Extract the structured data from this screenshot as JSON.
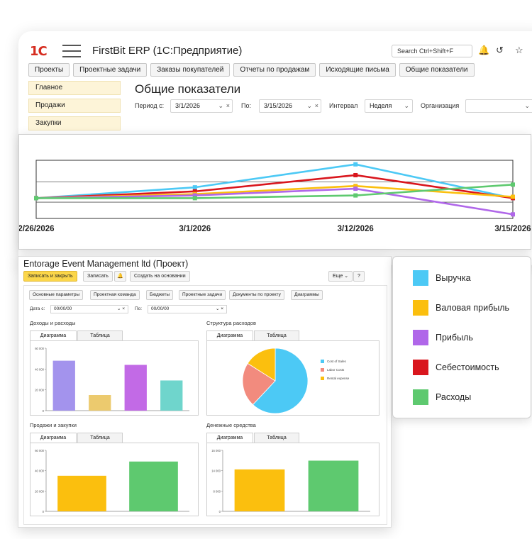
{
  "app": {
    "logo": "1С",
    "title": "FirstBit ERP (1С:Предприятие)",
    "search_placeholder": "Search Ctrl+Shift+F"
  },
  "top_tabs": [
    "Проекты",
    "Проектные задачи",
    "Заказы покупателей",
    "Отчеты по продажам",
    "Исходящие письма",
    "Общие показатели"
  ],
  "sidebar": [
    "Главное",
    "Продажи",
    "Закупки"
  ],
  "page": {
    "title": "Общие показатели",
    "filters": {
      "period_from_label": "Период с:",
      "period_from": "3/1/2026",
      "period_to_label": "По:",
      "period_to": "3/15/2026",
      "interval_label": "Интервал",
      "interval": "Неделя",
      "org_label": "Организация",
      "org": ""
    }
  },
  "colors": {
    "revenue": "#4cc9f5",
    "gross_profit": "#fbbf0e",
    "profit": "#b067e9",
    "cost": "#d9161d",
    "expenses": "#5ec96f",
    "bar_purple": "#a393ed",
    "bar_yellow": "#ecca6e",
    "bar_violet": "#c26ae6",
    "bar_teal": "#6fd5cc",
    "pie_red": "#f28b7e"
  },
  "chart_data": [
    {
      "type": "line",
      "x": [
        "2/26/2026",
        "3/1/2026",
        "3/12/2026",
        "3/15/2026"
      ],
      "series": [
        {
          "name": "Выручка",
          "values": [
            0,
            0.8,
            2.5,
            0
          ]
        },
        {
          "name": "Себестоимость",
          "values": [
            0,
            0.5,
            1.7,
            0
          ]
        },
        {
          "name": "Валовая прибыль",
          "values": [
            0,
            0.3,
            0.9,
            0.1
          ]
        },
        {
          "name": "Прибыль",
          "values": [
            0,
            0.2,
            0.7,
            -1.2
          ]
        },
        {
          "name": "Расходы",
          "values": [
            0,
            0,
            0.2,
            1
          ]
        }
      ],
      "ylim": [
        -1.5,
        2.8
      ]
    },
    {
      "type": "bar",
      "categories": [
        "",
        "",
        "",
        ""
      ],
      "values": [
        48000,
        15000,
        44000,
        29000
      ],
      "ylim": [
        0,
        60000
      ],
      "yticks": [
        "0",
        "20 000",
        "40 000",
        "60 000"
      ]
    },
    {
      "type": "pie",
      "series": [
        {
          "name": "Cost of Sales",
          "values": [
            62
          ]
        },
        {
          "name": "Labor Costs",
          "values": [
            22
          ]
        },
        {
          "name": "Rental expense",
          "values": [
            16
          ]
        }
      ]
    },
    {
      "type": "bar",
      "categories": [
        "",
        ""
      ],
      "values": [
        35000,
        49000
      ],
      "ylim": [
        0,
        60000
      ],
      "yticks": [
        "0",
        "20 000",
        "40 000",
        "60 000"
      ]
    },
    {
      "type": "bar",
      "categories": [
        "",
        ""
      ],
      "values": [
        11000,
        13300
      ],
      "ylim": [
        0,
        16000
      ],
      "yticks": [
        "0",
        "8 000",
        "14 000",
        "16 000"
      ]
    }
  ],
  "project": {
    "title": "Entorage Event Management ltd (Проект)",
    "buttons": {
      "save_close": "Записать и закрыть",
      "save": "Записать",
      "create_based": "Создать на основании",
      "more": "Еще",
      "help": "?"
    },
    "tabs": [
      "Основные параметры",
      "Проектная команда",
      "Бюджеты",
      "Проектные задачи",
      "Документы по проекту",
      "Диаграммы"
    ],
    "date_from_label": "Дата с:",
    "date_from": "00/00/00",
    "date_to_label": "По:",
    "date_to": "00/00/00",
    "sections": {
      "income": "Доходы и расходы",
      "structure": "Структура расходов",
      "sales": "Продажи и закупки",
      "cash": "Денежные средства"
    },
    "subtab_chart": "Диаграмма",
    "subtab_table": "Таблица"
  },
  "legend": [
    "Выручка",
    "Валовая прибыль",
    "Прибыль",
    "Себестоимость",
    "Расходы"
  ]
}
